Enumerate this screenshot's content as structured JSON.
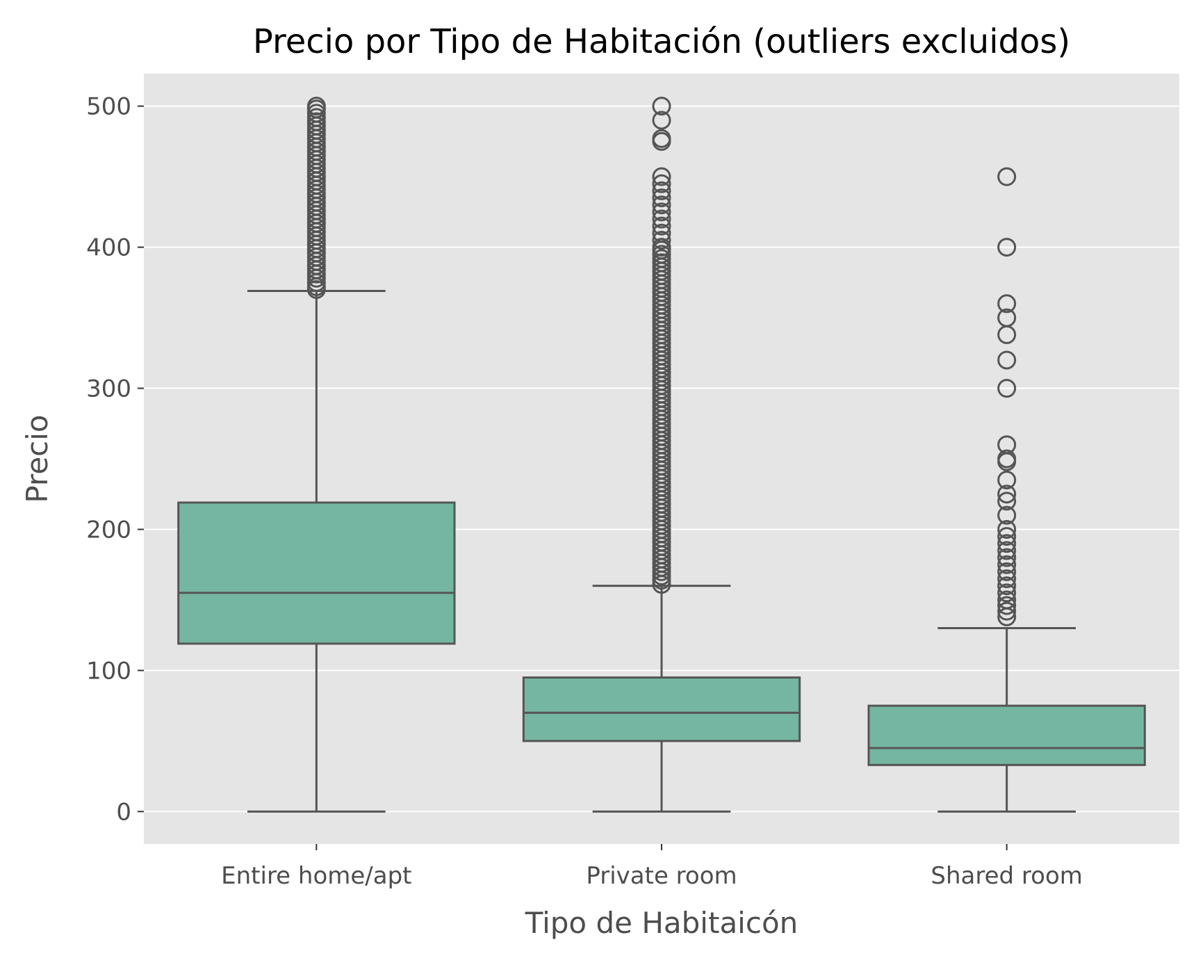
{
  "chart_data": {
    "type": "box",
    "title": "Precio por Tipo de Habitación (outliers excluidos)",
    "xlabel": "Tipo de Habitaicón",
    "ylabel": "Precio",
    "ylim": [
      -23,
      523
    ],
    "yticks": [
      0,
      100,
      200,
      300,
      400,
      500
    ],
    "grid": true,
    "colors": {
      "panel_bg": "#e5e5e5",
      "grid": "#ffffff",
      "box_fill": "#74b6a1",
      "line": "#555555",
      "tick_text": "#4d4d4d"
    },
    "categories": [
      "Entire home/apt",
      "Private room",
      "Shared room"
    ],
    "boxes": [
      {
        "category": "Entire home/apt",
        "whisker_low": 0,
        "q1": 119,
        "median": 155,
        "q3": 219,
        "whisker_high": 369,
        "outliers": [
          370,
          372,
          375,
          378,
          381,
          384,
          387,
          390,
          393,
          396,
          399,
          402,
          405,
          408,
          411,
          414,
          417,
          420,
          423,
          426,
          429,
          432,
          435,
          438,
          441,
          444,
          447,
          450,
          453,
          456,
          459,
          462,
          465,
          468,
          471,
          474,
          477,
          480,
          483,
          486,
          489,
          492,
          495,
          498,
          500
        ]
      },
      {
        "category": "Private room",
        "whisker_low": 0,
        "q1": 50,
        "median": 70,
        "q3": 95,
        "whisker_high": 160,
        "outliers": [
          161,
          164,
          167,
          170,
          173,
          176,
          179,
          182,
          185,
          188,
          191,
          194,
          197,
          200,
          203,
          206,
          209,
          212,
          215,
          218,
          221,
          224,
          227,
          230,
          233,
          236,
          239,
          242,
          245,
          248,
          251,
          254,
          257,
          260,
          263,
          266,
          269,
          272,
          275,
          278,
          281,
          284,
          287,
          290,
          293,
          296,
          299,
          302,
          305,
          308,
          311,
          314,
          317,
          320,
          323,
          326,
          329,
          332,
          335,
          338,
          341,
          344,
          347,
          350,
          353,
          356,
          359,
          362,
          365,
          368,
          371,
          374,
          377,
          380,
          383,
          386,
          389,
          392,
          395,
          398,
          400,
          405,
          410,
          415,
          420,
          425,
          430,
          435,
          440,
          445,
          450,
          475,
          477,
          490,
          500
        ]
      },
      {
        "category": "Shared room",
        "whisker_low": 0,
        "q1": 33,
        "median": 45,
        "q3": 75,
        "whisker_high": 130,
        "outliers": [
          138,
          142,
          146,
          150,
          155,
          160,
          165,
          170,
          175,
          180,
          185,
          190,
          195,
          200,
          210,
          220,
          225,
          235,
          248,
          250,
          260,
          300,
          320,
          338,
          350,
          360,
          400,
          450
        ]
      }
    ]
  }
}
